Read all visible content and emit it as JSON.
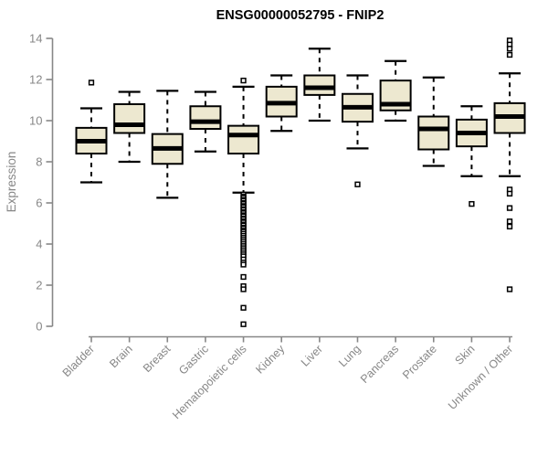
{
  "title": "ENSG00000052795 - FNIP2",
  "colors": {
    "box_fill": "#EDE8D0",
    "box_border": "#000000",
    "median": "#000000",
    "whisker": "#000000",
    "axis": "#878787",
    "tick_label": "#878787",
    "title": "#000000",
    "background": "#FFFFFF"
  },
  "chart_data": {
    "type": "boxplot",
    "title": "ENSG00000052795 - FNIP2",
    "xlabel": "",
    "ylabel": "Expression",
    "ylim": [
      0,
      14
    ],
    "yticks": [
      0,
      2,
      4,
      6,
      8,
      10,
      12,
      14
    ],
    "grid": false,
    "legend": false,
    "categories": [
      "Bladder",
      "Brain",
      "Breast",
      "Gastric",
      "Hematopoietic cells",
      "Kidney",
      "Liver",
      "Lung",
      "Pancreas",
      "Prostate",
      "Skin",
      "Unknown / Other"
    ],
    "series": [
      {
        "category": "Bladder",
        "whisker_low": 7.0,
        "q1": 8.4,
        "median": 9.0,
        "q3": 9.65,
        "whisker_high": 10.6,
        "outliers": [
          11.85
        ]
      },
      {
        "category": "Brain",
        "whisker_low": 8.0,
        "q1": 9.4,
        "median": 9.8,
        "q3": 10.8,
        "whisker_high": 11.4,
        "outliers": []
      },
      {
        "category": "Breast",
        "whisker_low": 6.25,
        "q1": 7.9,
        "median": 8.65,
        "q3": 9.35,
        "whisker_high": 11.45,
        "outliers": []
      },
      {
        "category": "Gastric",
        "whisker_low": 8.5,
        "q1": 9.6,
        "median": 9.95,
        "q3": 10.7,
        "whisker_high": 11.4,
        "outliers": []
      },
      {
        "category": "Hematopoietic cells",
        "whisker_low": 6.5,
        "q1": 8.4,
        "median": 9.3,
        "q3": 9.75,
        "whisker_high": 11.65,
        "outliers": [
          11.95,
          6.4,
          6.3,
          6.25,
          6.15,
          6.1,
          6.0,
          5.95,
          5.85,
          5.8,
          5.7,
          5.65,
          5.55,
          5.5,
          5.4,
          5.35,
          5.25,
          5.2,
          5.1,
          5.05,
          4.95,
          4.9,
          4.8,
          4.75,
          4.65,
          4.6,
          4.5,
          4.4,
          4.3,
          4.2,
          4.1,
          4.0,
          3.9,
          3.8,
          3.7,
          3.6,
          3.5,
          3.4,
          3.25,
          3.1,
          3.0,
          2.4,
          1.95,
          1.8,
          0.9,
          0.1
        ]
      },
      {
        "category": "Kidney",
        "whisker_low": 9.5,
        "q1": 10.2,
        "median": 10.85,
        "q3": 11.65,
        "whisker_high": 12.2,
        "outliers": []
      },
      {
        "category": "Liver",
        "whisker_low": 10.0,
        "q1": 11.25,
        "median": 11.6,
        "q3": 12.2,
        "whisker_high": 13.5,
        "outliers": []
      },
      {
        "category": "Lung",
        "whisker_low": 8.65,
        "q1": 9.95,
        "median": 10.65,
        "q3": 11.3,
        "whisker_high": 12.2,
        "outliers": [
          6.9
        ]
      },
      {
        "category": "Pancreas",
        "whisker_low": 10.0,
        "q1": 10.5,
        "median": 10.8,
        "q3": 11.95,
        "whisker_high": 12.9,
        "outliers": []
      },
      {
        "category": "Prostate",
        "whisker_low": 7.8,
        "q1": 8.6,
        "median": 9.6,
        "q3": 10.2,
        "whisker_high": 12.1,
        "outliers": []
      },
      {
        "category": "Skin",
        "whisker_low": 7.3,
        "q1": 8.75,
        "median": 9.4,
        "q3": 10.05,
        "whisker_high": 10.7,
        "outliers": [
          5.95
        ]
      },
      {
        "category": "Unknown / Other",
        "whisker_low": 7.3,
        "q1": 9.4,
        "median": 10.2,
        "q3": 10.85,
        "whisker_high": 12.3,
        "outliers": [
          13.9,
          13.7,
          13.5,
          13.2,
          6.65,
          6.45,
          5.75,
          5.1,
          4.85,
          1.8
        ]
      }
    ]
  }
}
